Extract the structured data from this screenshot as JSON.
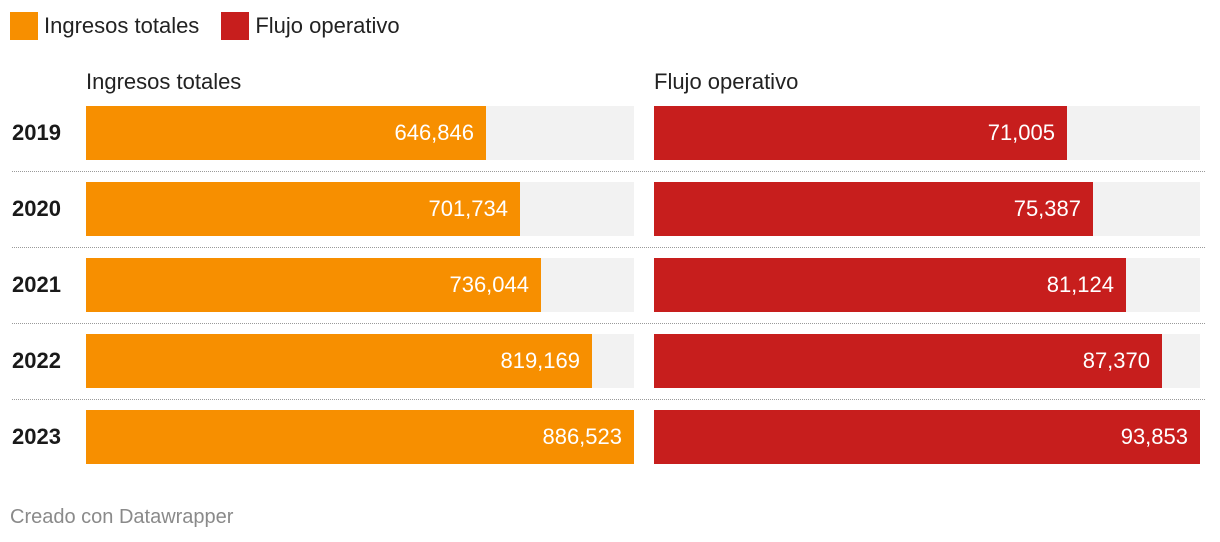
{
  "legend": {
    "items": [
      {
        "label": "Ingresos totales",
        "color": "#f78f00"
      },
      {
        "label": "Flujo operativo",
        "color": "#c71e1d"
      }
    ]
  },
  "chart_data": {
    "type": "bar",
    "orientation": "horizontal",
    "layout": "split-columns",
    "categories": [
      "2019",
      "2020",
      "2021",
      "2022",
      "2023"
    ],
    "series": [
      {
        "name": "Ingresos totales",
        "color": "#f78f00",
        "values": [
          646846,
          701734,
          736044,
          819169,
          886523
        ],
        "labels": [
          "646,846",
          "701,734",
          "736,044",
          "819,169",
          "886,523"
        ],
        "xlim": [
          0,
          886523
        ]
      },
      {
        "name": "Flujo operativo",
        "color": "#c71e1d",
        "values": [
          71005,
          75387,
          81124,
          87370,
          93853
        ],
        "labels": [
          "71,005",
          "75,387",
          "81,124",
          "87,370",
          "93,853"
        ],
        "xlim": [
          0,
          93853
        ]
      }
    ],
    "track_color": "#f2f2f2",
    "legend_position": "top-left",
    "grid": false
  },
  "footer": "Creado con Datawrapper"
}
